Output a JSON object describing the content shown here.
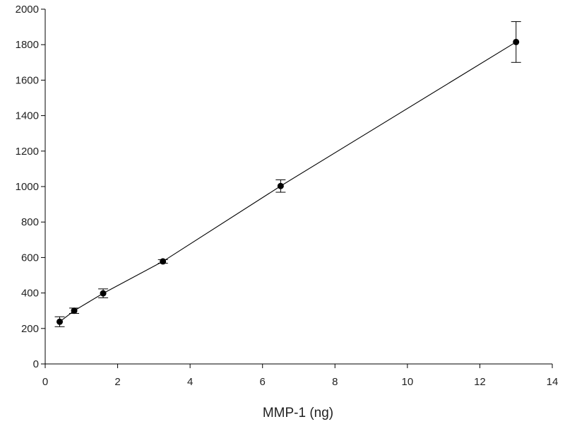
{
  "chart_data": {
    "type": "scatter",
    "title": "",
    "xlabel": "MMP-1 (ng)",
    "ylabel": "",
    "xlim": [
      0,
      14
    ],
    "ylim": [
      0,
      2000
    ],
    "xticks": [
      0,
      2,
      4,
      6,
      8,
      10,
      12,
      14
    ],
    "yticks": [
      0,
      200,
      400,
      600,
      800,
      1000,
      1200,
      1400,
      1600,
      1800,
      2000
    ],
    "grid": false,
    "legend": "none",
    "series": [
      {
        "x": [
          0.4,
          0.8,
          1.6,
          3.25,
          6.5,
          13
        ],
        "y": [
          238,
          300,
          398,
          578,
          1003,
          1815
        ],
        "error": [
          28,
          15,
          25,
          10,
          35,
          115
        ],
        "fit_line": true,
        "color": "#000000"
      }
    ]
  }
}
